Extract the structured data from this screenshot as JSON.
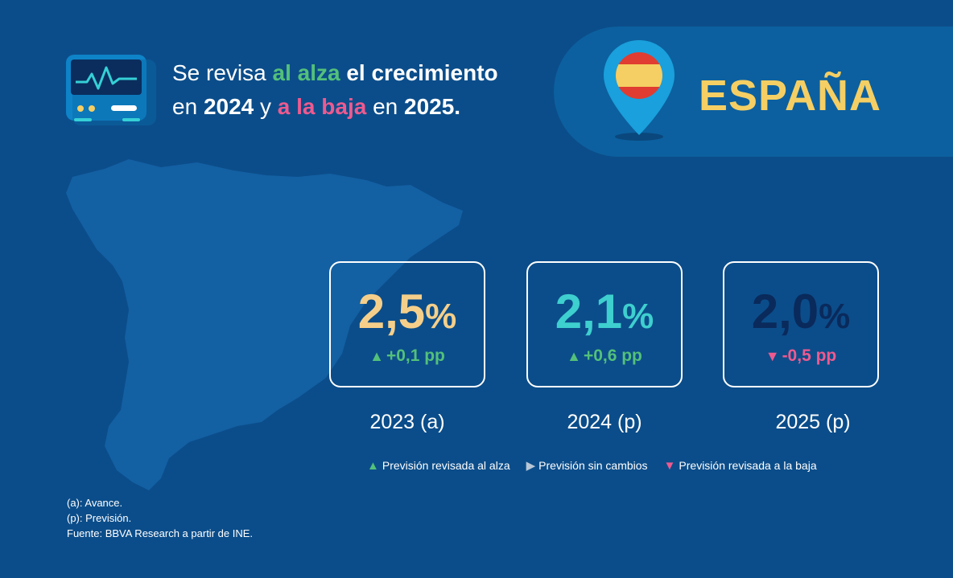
{
  "colors": {
    "background": "#0b4d8a",
    "panel": "#0c609f",
    "up": "#53c07a",
    "down": "#ee5a8f",
    "neutral": "#b8c6d6",
    "country": "#f5cf63"
  },
  "headline": {
    "part1": "Se revisa ",
    "highlight_up": "al alza",
    "part2": " el crecimiento",
    "part3": "en ",
    "year1": "2024",
    "part4": " y ",
    "highlight_down": "a la baja",
    "part5": " en ",
    "year2": "2025."
  },
  "country": {
    "name": "ESPAÑA",
    "icon": "location-pin-spain-flag-icon"
  },
  "header_icon": "monitor-pulse-icon",
  "cards": [
    {
      "value": "2,5",
      "unit": "%",
      "value_color": "#f5cf8a",
      "change_symbol": "▲",
      "change": "+0,1 pp",
      "change_color": "#53c07a",
      "year": "2023 (a)"
    },
    {
      "value": "2,1",
      "unit": "%",
      "value_color": "#3ecfcf",
      "change_symbol": "▲",
      "change": "+0,6 pp",
      "change_color": "#53c07a",
      "year": "2024 (p)"
    },
    {
      "value": "2,0",
      "unit": "%",
      "value_color": "#0a2a5c",
      "change_symbol": "▼",
      "change": "-0,5 pp",
      "change_color": "#ee5a8f",
      "year": "2025 (p)"
    }
  ],
  "legend": [
    {
      "symbol": "▲",
      "color": "#53c07a",
      "label": "Previsión revisada al alza"
    },
    {
      "symbol": "▶",
      "color": "#b8c6d6",
      "label": "Previsión sin cambios"
    },
    {
      "symbol": "▼",
      "color": "#ee5a8f",
      "label": "Previsión revisada a la baja"
    }
  ],
  "notes": {
    "line1": "(a): Avance.",
    "line2": "(p): Previsión.",
    "line3": "Fuente: BBVA Research a partir de INE."
  }
}
